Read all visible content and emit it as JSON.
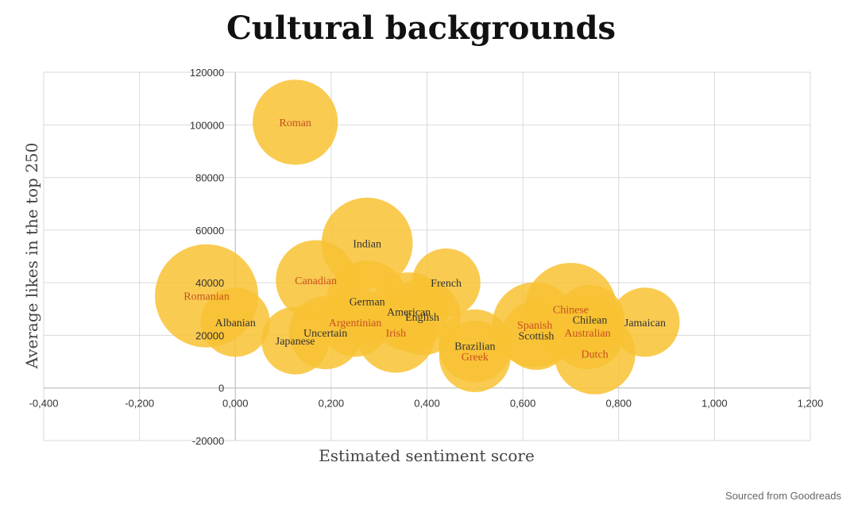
{
  "chart_data": {
    "type": "bubble",
    "title": "Cultural backgrounds",
    "xlabel": "Estimated sentiment score",
    "ylabel": "Average likes in the top 250",
    "xlim": [
      -0.4,
      1.2
    ],
    "ylim": [
      -20000,
      120000
    ],
    "x_ticks": [
      "-0,400",
      "-0,200",
      "0,000",
      "0,200",
      "0,400",
      "0,600",
      "0,800",
      "1,000",
      "1,200"
    ],
    "y_ticks": [
      "-20000",
      "0",
      "20000",
      "40000",
      "60000",
      "80000",
      "100000",
      "120000"
    ],
    "grid": true,
    "bubble_color": "#f8c232",
    "label_colors": {
      "orange": "#c8501e",
      "dark": "#333333"
    },
    "points": [
      {
        "label": "Romanian",
        "x": -0.06,
        "y": 35000,
        "size": 1.0,
        "label_color": "orange"
      },
      {
        "label": "Albanian",
        "x": 0.0,
        "y": 25000,
        "size": 0.45,
        "label_color": "dark"
      },
      {
        "label": "Roman",
        "x": 0.125,
        "y": 101000,
        "size": 0.68,
        "label_color": "orange"
      },
      {
        "label": "Japanese",
        "x": 0.125,
        "y": 18000,
        "size": 0.43,
        "label_color": "dark"
      },
      {
        "label": "Canadian",
        "x": 0.168,
        "y": 41000,
        "size": 0.6,
        "label_color": "orange"
      },
      {
        "label": "Uncertain",
        "x": 0.188,
        "y": 21000,
        "size": 0.5,
        "label_color": "dark"
      },
      {
        "label": "Argentinian",
        "x": 0.25,
        "y": 25000,
        "size": 0.45,
        "label_color": "orange"
      },
      {
        "label": "German",
        "x": 0.275,
        "y": 33000,
        "size": 0.62,
        "label_color": "dark"
      },
      {
        "label": "Indian",
        "x": 0.275,
        "y": 55000,
        "size": 0.78,
        "label_color": "dark"
      },
      {
        "label": "Irish",
        "x": 0.335,
        "y": 21000,
        "size": 0.6,
        "label_color": "orange"
      },
      {
        "label": "American",
        "x": 0.362,
        "y": 29000,
        "size": 0.58,
        "label_color": "dark"
      },
      {
        "label": "English",
        "x": 0.39,
        "y": 27000,
        "size": 0.55,
        "label_color": "dark"
      },
      {
        "label": "French",
        "x": 0.44,
        "y": 40000,
        "size": 0.44,
        "label_color": "dark"
      },
      {
        "label": "Brazilian",
        "x": 0.5,
        "y": 16000,
        "size": 0.5,
        "label_color": "dark"
      },
      {
        "label": "Greek",
        "x": 0.5,
        "y": 12000,
        "size": 0.48,
        "label_color": "orange"
      },
      {
        "label": "Spanish",
        "x": 0.625,
        "y": 24000,
        "size": 0.68,
        "label_color": "orange"
      },
      {
        "label": "Scottish",
        "x": 0.628,
        "y": 20000,
        "size": 0.45,
        "label_color": "dark"
      },
      {
        "label": "Chinese",
        "x": 0.7,
        "y": 30000,
        "size": 0.8,
        "label_color": "orange"
      },
      {
        "label": "Chilean",
        "x": 0.74,
        "y": 26000,
        "size": 0.45,
        "label_color": "dark"
      },
      {
        "label": "Australian",
        "x": 0.735,
        "y": 21000,
        "size": 0.5,
        "label_color": "orange"
      },
      {
        "label": "Dutch",
        "x": 0.75,
        "y": 13000,
        "size": 0.62,
        "label_color": "orange"
      },
      {
        "label": "Jamaican",
        "x": 0.855,
        "y": 25000,
        "size": 0.45,
        "label_color": "dark"
      }
    ]
  },
  "footer": {
    "source": "Sourced from Goodreads"
  }
}
